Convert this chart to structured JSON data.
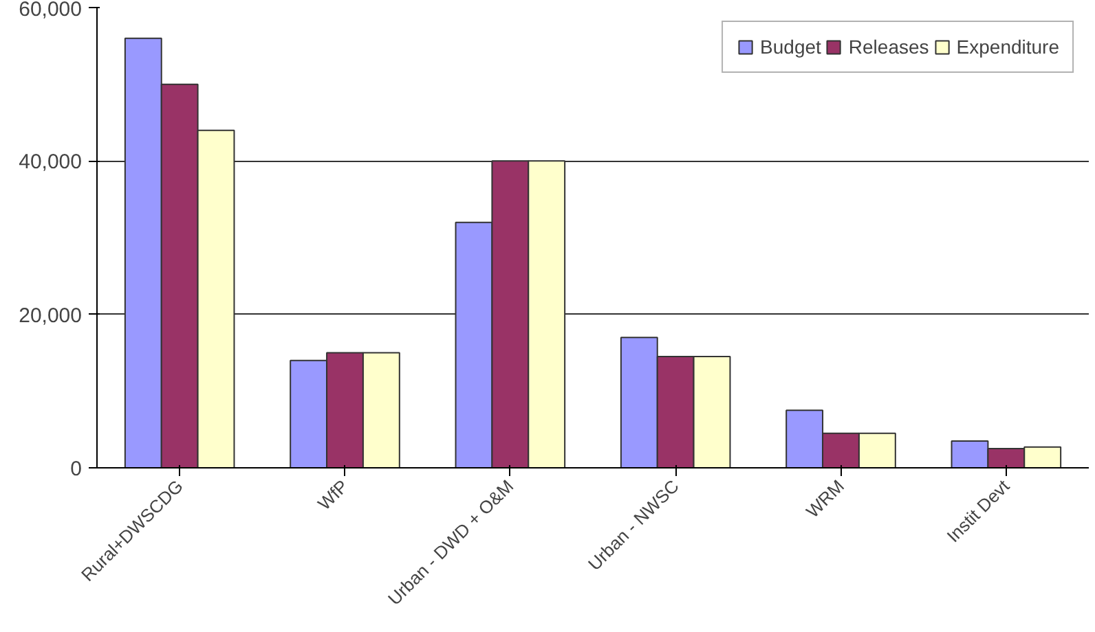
{
  "chart_data": {
    "type": "bar",
    "categories": [
      "Rural+DWSCDG",
      "WfP",
      "Urban - DWD + O&M",
      "Urban - NWSC",
      "WRM",
      "Instit Devt"
    ],
    "series": [
      {
        "name": "Budget",
        "color": "#9999ff",
        "values": [
          56000,
          14000,
          32000,
          17000,
          7500,
          3500
        ]
      },
      {
        "name": "Releases",
        "color": "#993366",
        "values": [
          50000,
          15000,
          40000,
          14500,
          4500,
          2500
        ]
      },
      {
        "name": "Expenditure",
        "color": "#ffffcc",
        "values": [
          44000,
          15000,
          40000,
          14500,
          4500,
          2700
        ]
      }
    ],
    "ylim": [
      0,
      60000
    ],
    "yticks": [
      {
        "value": 0,
        "label": "0"
      },
      {
        "value": 20000,
        "label": "20,000"
      },
      {
        "value": 40000,
        "label": "40,000"
      },
      {
        "value": 60000,
        "label": "60,000"
      }
    ],
    "grid": "y",
    "legend": "top right"
  }
}
